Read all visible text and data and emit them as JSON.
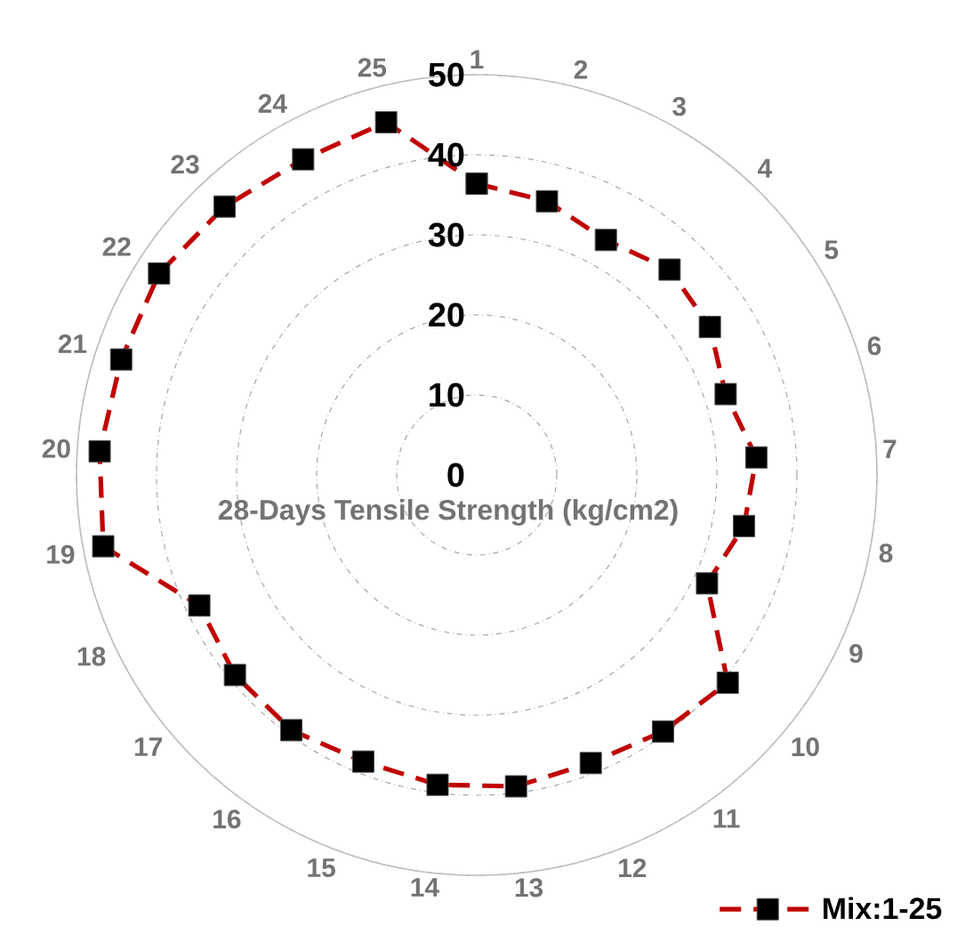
{
  "chart_data": {
    "type": "radar",
    "ylabel": "28-Days Tensile Strength (kg/cm2)",
    "categories": [
      "1",
      "2",
      "3",
      "4",
      "5",
      "6",
      "7",
      "8",
      "9",
      "10",
      "11",
      "12",
      "13",
      "14",
      "15",
      "16",
      "17",
      "18",
      "19",
      "20",
      "21",
      "22",
      "23",
      "24",
      "25"
    ],
    "series": [
      {
        "name": "Mix:1-25",
        "color": "#c00000",
        "values": [
          36.4,
          35.3,
          33.5,
          35.2,
          34.5,
          32.7,
          35,
          34,
          31.8,
          40.7,
          39.6,
          38.7,
          39.2,
          39,
          38.5,
          39.4,
          39.2,
          38.3,
          47.5,
          47.2,
          46.7,
          47,
          46,
          45,
          45.5
        ]
      }
    ],
    "ylim": [
      0,
      50
    ],
    "yticks": [
      0,
      10,
      20,
      30,
      40,
      50
    ],
    "grid": true,
    "legend": "bottom right",
    "marker": "square",
    "line_style": "dashed"
  }
}
